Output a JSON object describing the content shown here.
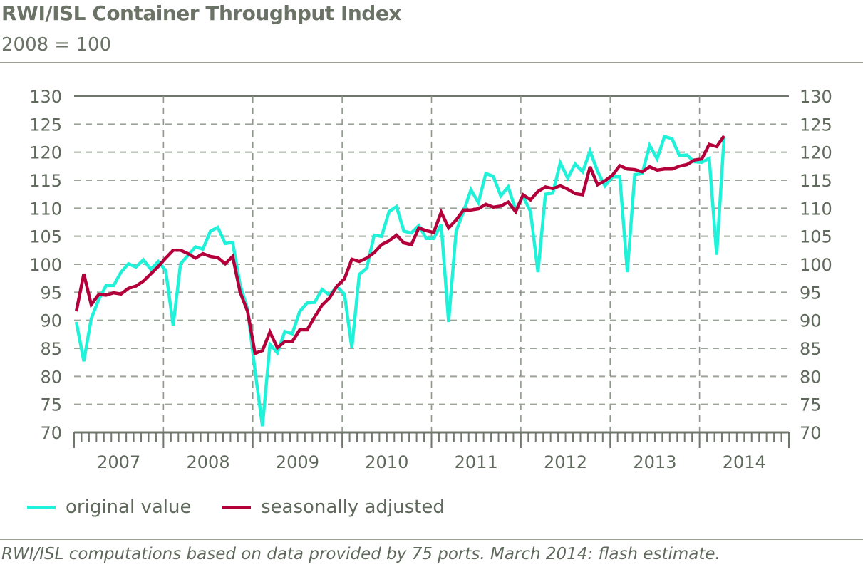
{
  "chart_data": {
    "type": "line",
    "title": "RWI/ISL Container Throughput Index",
    "subtitle": "2008 = 100",
    "ylim": [
      70,
      130
    ],
    "yticks": [
      70,
      75,
      80,
      85,
      90,
      95,
      100,
      105,
      110,
      115,
      120,
      125,
      130
    ],
    "x_start": "2007-01",
    "x_frequency": "monthly",
    "xtick_labels": [
      "2007",
      "2008",
      "2009",
      "2010",
      "2011",
      "2012",
      "2013",
      "2014"
    ],
    "grid": true,
    "legend_placement": "bottom",
    "series": [
      {
        "name": "original value",
        "color": "#1ff2d8",
        "values": [
          89.7,
          82.7,
          90.3,
          93.7,
          96.2,
          96.2,
          98.6,
          100.1,
          99.5,
          100.8,
          99.1,
          100.5,
          98.9,
          89.1,
          100.1,
          101.6,
          103.1,
          102.7,
          105.9,
          106.6,
          103.7,
          103.9,
          96.3,
          92.0,
          81.0,
          71.1,
          85.7,
          84.2,
          88.0,
          87.6,
          91.6,
          93.1,
          93.2,
          95.5,
          94.5,
          96.0,
          94.7,
          85.1,
          98.2,
          99.3,
          105.2,
          105.0,
          109.4,
          110.3,
          105.9,
          105.6,
          106.9,
          104.6,
          104.6,
          107.1,
          89.7,
          105.9,
          109.4,
          113.3,
          111.0,
          116.2,
          115.7,
          112.2,
          113.8,
          109.7,
          112.1,
          109.4,
          98.6,
          112.5,
          112.7,
          118.1,
          115.4,
          117.9,
          116.5,
          120.2,
          116.6,
          114.0,
          115.6,
          115.6,
          98.6,
          116.0,
          116.2,
          121.2,
          118.8,
          122.8,
          122.4,
          119.4,
          119.5,
          118.3,
          118.2,
          118.9,
          101.7,
          122.7
        ]
      },
      {
        "name": "seasonally adjusted",
        "color": "#b3003a",
        "values": [
          91.6,
          98.3,
          92.8,
          94.6,
          94.5,
          94.9,
          94.7,
          95.7,
          96.1,
          97.0,
          98.3,
          99.6,
          101.1,
          102.5,
          102.5,
          101.9,
          101.1,
          101.9,
          101.4,
          101.2,
          100.1,
          101.4,
          95.0,
          91.6,
          84.1,
          84.6,
          87.9,
          85.1,
          86.2,
          86.2,
          88.3,
          88.3,
          90.6,
          92.7,
          94.0,
          96.1,
          97.4,
          100.9,
          100.5,
          101.1,
          102.1,
          103.5,
          104.2,
          105.2,
          103.8,
          103.5,
          106.5,
          106.0,
          105.7,
          109.3,
          106.5,
          107.9,
          109.7,
          109.7,
          109.9,
          110.7,
          110.2,
          110.4,
          111.1,
          109.4,
          112.4,
          111.5,
          113.0,
          113.8,
          113.5,
          114.0,
          113.4,
          112.6,
          112.4,
          117.4,
          114.2,
          114.9,
          115.9,
          117.6,
          117.0,
          116.9,
          116.5,
          117.4,
          116.8,
          117.0,
          117.0,
          117.5,
          117.8,
          118.6,
          118.8,
          121.4,
          121.0,
          122.9
        ]
      }
    ],
    "footnote": "RWI/ISL computations based on data provided by 75 ports. March 2014: flash estimate."
  }
}
